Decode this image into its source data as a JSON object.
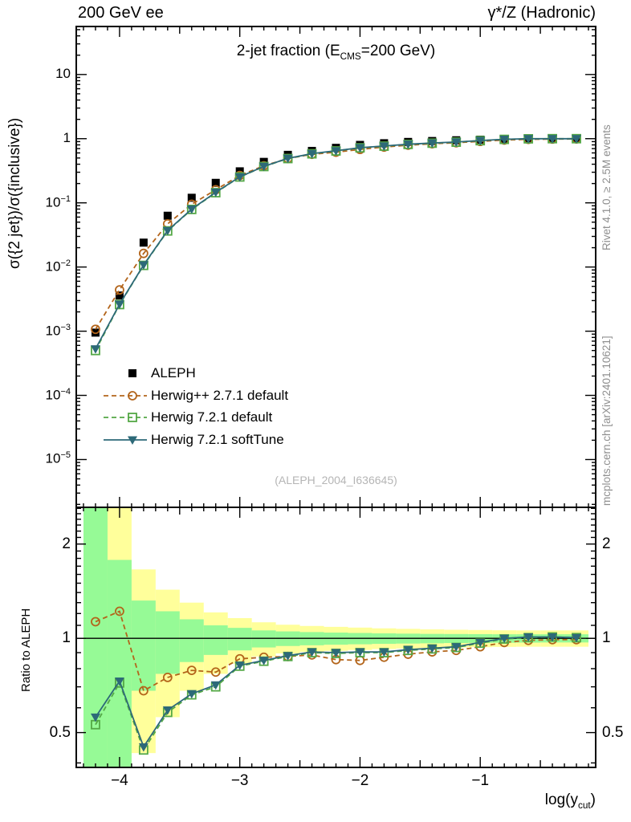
{
  "header": {
    "left": "200 GeV ee",
    "right": "γ*/Z (Hadronic)"
  },
  "titles": {
    "main_pre": "2-jet fraction (E",
    "main_sub": "CMS",
    "main_post": "=200 GeV)"
  },
  "watermark": "(ALEPH_2004_I636645)",
  "side_notes": {
    "top": "Rivet 4.1.0, ≥ 2.5M events",
    "bottom": "mcplots.cern.ch [arXiv:2401.10621]"
  },
  "xlabel": {
    "pre": "log(y",
    "sub": "cut",
    "post": ")"
  },
  "chart_data": {
    "type": "line",
    "xlim": [
      -4.36,
      -0.04
    ],
    "bin_width": 0.2,
    "x": [
      -4.2,
      -4.0,
      -3.8,
      -3.6,
      -3.4,
      -3.2,
      -3.0,
      -2.8,
      -2.6,
      -2.4,
      -2.2,
      -2.0,
      -1.8,
      -1.6,
      -1.4,
      -1.2,
      -1.0,
      -0.8,
      -0.6,
      -0.4,
      -0.2
    ],
    "xticks": [
      {
        "v": -4,
        "label": "−4"
      },
      {
        "v": -3,
        "label": "−3"
      },
      {
        "v": -2,
        "label": "−2"
      },
      {
        "v": -1,
        "label": "−1"
      }
    ],
    "main_panel": {
      "ylabel": "σ({2 jet})/σ({inclusive})",
      "ylim": [
        1.8e-06,
        56
      ],
      "yticks": [
        {
          "v": 10,
          "base": "10",
          "sup": ""
        },
        {
          "v": 1,
          "base": "1",
          "sup": ""
        },
        {
          "v": 0.1,
          "base": "10",
          "sup": "−1"
        },
        {
          "v": 0.01,
          "base": "10",
          "sup": "−2"
        },
        {
          "v": 0.001,
          "base": "10",
          "sup": "−3"
        },
        {
          "v": 0.0001,
          "base": "10",
          "sup": "−4"
        },
        {
          "v": 1e-05,
          "base": "10",
          "sup": "−5"
        }
      ],
      "series": [
        {
          "name": "ALEPH",
          "color": "#000000",
          "marker": "square-filled",
          "line": "none",
          "values": [
            0.00095,
            0.0036,
            0.024,
            0.063,
            0.12,
            0.205,
            0.31,
            0.435,
            0.56,
            0.645,
            0.72,
            0.8,
            0.85,
            0.89,
            0.92,
            0.945,
            0.965,
            0.98,
            0.99,
            0.995,
            1.0
          ]
        },
        {
          "name": "Herwig++ 2.7.1 default",
          "color": "#b3651b",
          "marker": "circle-open",
          "line": "dashed",
          "values": [
            0.00107,
            0.0044,
            0.0163,
            0.047,
            0.095,
            0.16,
            0.267,
            0.378,
            0.49,
            0.571,
            0.616,
            0.68,
            0.74,
            0.792,
            0.833,
            0.865,
            0.907,
            0.951,
            0.975,
            0.985,
            0.99
          ]
        },
        {
          "name": "Herwig 7.2.1 default",
          "color": "#54a846",
          "marker": "square-open",
          "line": "dashed",
          "values": [
            0.0005,
            0.0026,
            0.0106,
            0.0365,
            0.079,
            0.144,
            0.253,
            0.368,
            0.49,
            0.581,
            0.644,
            0.72,
            0.765,
            0.814,
            0.851,
            0.883,
            0.931,
            0.975,
            0.995,
            1.0,
            1.0
          ]
        },
        {
          "name": "Herwig 7.2.1 softTune",
          "color": "#2d6978",
          "marker": "triangle-down-filled",
          "line": "solid",
          "values": [
            0.00053,
            0.00263,
            0.0108,
            0.037,
            0.08,
            0.146,
            0.254,
            0.37,
            0.493,
            0.584,
            0.648,
            0.724,
            0.769,
            0.819,
            0.856,
            0.888,
            0.936,
            0.98,
            1.0,
            1.0,
            1.0
          ]
        }
      ]
    },
    "ratio_panel": {
      "ylabel": "Ratio to ALEPH",
      "ylim": [
        0.387,
        2.62
      ],
      "reference_line": 1,
      "yticks": [
        {
          "v": 2,
          "label": "2"
        },
        {
          "v": 1,
          "label": "1"
        },
        {
          "v": 0.5,
          "label": "0.5"
        }
      ],
      "bands": {
        "yellow": {
          "color": "#ffff9b",
          "hi": [
            2.62,
            2.62,
            1.66,
            1.43,
            1.3,
            1.21,
            1.16,
            1.125,
            1.105,
            1.095,
            1.088,
            1.082,
            1.076,
            1.072,
            1.068,
            1.065,
            1.063,
            1.061,
            1.06,
            1.06,
            1.06
          ],
          "lo": [
            0.387,
            0.387,
            0.43,
            0.56,
            0.68,
            0.77,
            0.83,
            0.875,
            0.895,
            0.905,
            0.912,
            0.918,
            0.924,
            0.928,
            0.932,
            0.935,
            0.937,
            0.939,
            0.94,
            0.94,
            0.94
          ]
        },
        "green": {
          "color": "#96fa96",
          "hi": [
            2.62,
            1.78,
            1.32,
            1.22,
            1.15,
            1.1,
            1.08,
            1.06,
            1.052,
            1.047,
            1.043,
            1.04,
            1.037,
            1.035,
            1.033,
            1.032,
            1.031,
            1.03,
            1.03,
            1.03,
            1.03
          ],
          "lo": [
            0.387,
            0.387,
            0.68,
            0.77,
            0.84,
            0.885,
            0.915,
            0.935,
            0.945,
            0.95,
            0.954,
            0.957,
            0.96,
            0.962,
            0.964,
            0.966,
            0.967,
            0.968,
            0.969,
            0.97,
            0.97
          ]
        }
      },
      "series": [
        {
          "name": "Herwig++ 2.7.1 default",
          "color": "#b3651b",
          "marker": "circle-open",
          "line": "dashed",
          "ratios": [
            1.13,
            1.22,
            0.68,
            0.75,
            0.79,
            0.78,
            0.86,
            0.87,
            0.875,
            0.885,
            0.855,
            0.85,
            0.87,
            0.89,
            0.905,
            0.915,
            0.94,
            0.97,
            0.985,
            0.99,
            0.99
          ]
        },
        {
          "name": "Herwig 7.2.1 default",
          "color": "#54a846",
          "marker": "square-open",
          "line": "dashed",
          "ratios": [
            0.53,
            0.72,
            0.44,
            0.58,
            0.66,
            0.7,
            0.815,
            0.845,
            0.875,
            0.9,
            0.895,
            0.9,
            0.9,
            0.915,
            0.925,
            0.935,
            0.965,
            0.995,
            1.005,
            1.01,
            1.005
          ]
        },
        {
          "name": "Herwig 7.2.1 softTune",
          "color": "#2d6978",
          "marker": "triangle-down-filled",
          "line": "solid",
          "ratios": [
            0.56,
            0.73,
            0.45,
            0.59,
            0.665,
            0.71,
            0.82,
            0.85,
            0.88,
            0.905,
            0.9,
            0.905,
            0.905,
            0.92,
            0.93,
            0.94,
            0.97,
            1.0,
            1.01,
            1.01,
            1.005
          ]
        }
      ]
    }
  }
}
